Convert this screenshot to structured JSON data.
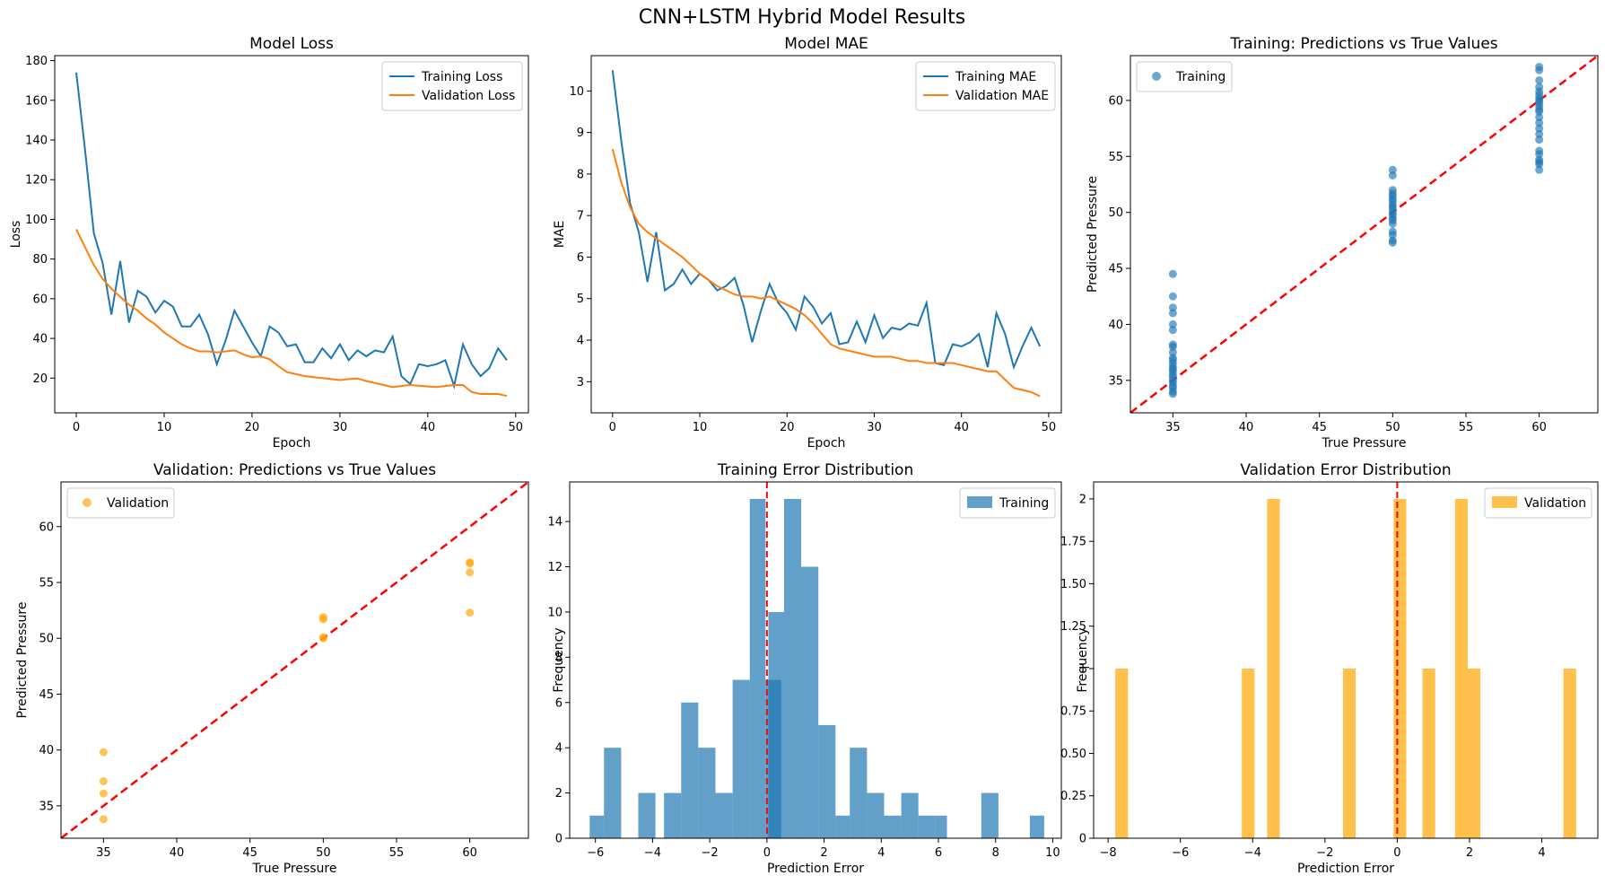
{
  "figure": {
    "title": "CNN+LSTM Hybrid Model Results"
  },
  "colors": {
    "blue": "#1f77b4",
    "orange": "#ff7f0e",
    "valOrange": "#ffa500",
    "histBlue": "#1f77b4",
    "ref": "#ff0000"
  },
  "chart_data": [
    {
      "type": "line",
      "title": "Model Loss",
      "xlabel": "Epoch",
      "ylabel": "Loss",
      "xlim": [
        -2.45,
        51.45
      ],
      "ylim": [
        2.5,
        182.5
      ],
      "xticks": [
        0,
        10,
        20,
        30,
        40,
        50
      ],
      "yticks": [
        20,
        40,
        60,
        80,
        100,
        120,
        140,
        160,
        180
      ],
      "legend": "top-right",
      "x": [
        0,
        1,
        2,
        3,
        4,
        5,
        6,
        7,
        8,
        9,
        10,
        11,
        12,
        13,
        14,
        15,
        16,
        17,
        18,
        19,
        20,
        21,
        22,
        23,
        24,
        25,
        26,
        27,
        28,
        29,
        30,
        31,
        32,
        33,
        34,
        35,
        36,
        37,
        38,
        39,
        40,
        41,
        42,
        43,
        44,
        45,
        46,
        47,
        48,
        49
      ],
      "series": [
        {
          "name": "Training Loss",
          "color": "#1f77b4",
          "values": [
            174,
            135,
            93,
            78,
            52,
            79,
            48,
            64,
            61,
            53,
            59,
            56,
            46,
            46,
            52,
            42,
            27,
            39,
            54,
            46,
            38,
            31,
            46,
            43,
            36,
            37,
            28,
            28,
            35,
            30,
            37,
            29,
            34,
            31,
            34,
            33,
            41,
            21,
            17,
            27,
            26,
            27,
            29,
            16,
            37,
            27,
            21,
            25,
            35,
            29
          ]
        },
        {
          "name": "Validation Loss",
          "color": "#ff7f0e",
          "values": [
            95,
            86,
            77,
            70,
            65,
            61,
            57,
            54,
            50,
            47,
            43,
            40,
            37,
            35,
            33.5,
            33.5,
            33,
            33.5,
            34,
            32,
            30.5,
            31,
            29.5,
            26,
            23,
            22,
            21,
            20.5,
            20,
            19.5,
            19,
            19.5,
            19.8,
            18.5,
            17.5,
            16.5,
            15.5,
            16,
            16.5,
            16.2,
            15.8,
            15.5,
            16,
            16.5,
            16.5,
            13,
            12,
            12,
            12,
            11
          ]
        }
      ]
    },
    {
      "type": "line",
      "title": "Model MAE",
      "xlabel": "Epoch",
      "ylabel": "MAE",
      "xlim": [
        -2.45,
        51.45
      ],
      "ylim": [
        2.25,
        10.85
      ],
      "xticks": [
        0,
        10,
        20,
        30,
        40,
        50
      ],
      "yticks": [
        3,
        4,
        5,
        6,
        7,
        8,
        9,
        10
      ],
      "legend": "top-right",
      "x": [
        0,
        1,
        2,
        3,
        4,
        5,
        6,
        7,
        8,
        9,
        10,
        11,
        12,
        13,
        14,
        15,
        16,
        17,
        18,
        19,
        20,
        21,
        22,
        23,
        24,
        25,
        26,
        27,
        28,
        29,
        30,
        31,
        32,
        33,
        34,
        35,
        36,
        37,
        38,
        39,
        40,
        41,
        42,
        43,
        44,
        45,
        46,
        47,
        48,
        49
      ],
      "series": [
        {
          "name": "Training MAE",
          "color": "#1f77b4",
          "values": [
            10.5,
            8.8,
            7.3,
            6.6,
            5.4,
            6.6,
            5.2,
            5.35,
            5.7,
            5.35,
            5.6,
            5.45,
            5.2,
            5.3,
            5.5,
            4.85,
            3.95,
            4.7,
            5.35,
            4.9,
            4.65,
            4.25,
            5.05,
            4.8,
            4.4,
            4.65,
            3.9,
            3.95,
            4.45,
            3.95,
            4.6,
            4.05,
            4.3,
            4.25,
            4.4,
            4.35,
            4.9,
            3.45,
            3.4,
            3.9,
            3.85,
            3.95,
            4.15,
            3.35,
            4.65,
            4.15,
            3.35,
            3.85,
            4.3,
            3.85
          ]
        },
        {
          "name": "Validation MAE",
          "color": "#ff7f0e",
          "values": [
            8.6,
            7.8,
            7.2,
            6.8,
            6.6,
            6.45,
            6.3,
            6.15,
            6.0,
            5.8,
            5.6,
            5.45,
            5.3,
            5.2,
            5.1,
            5.05,
            5.05,
            5.0,
            5.05,
            4.95,
            4.85,
            4.75,
            4.6,
            4.4,
            4.15,
            3.9,
            3.8,
            3.75,
            3.7,
            3.65,
            3.6,
            3.6,
            3.6,
            3.55,
            3.5,
            3.5,
            3.45,
            3.45,
            3.45,
            3.45,
            3.4,
            3.35,
            3.3,
            3.25,
            3.25,
            3.05,
            2.85,
            2.8,
            2.75,
            2.65
          ]
        }
      ]
    },
    {
      "type": "scatter",
      "title": "Training: Predictions vs True Values",
      "xlabel": "True Pressure",
      "ylabel": "Predicted Pressure",
      "xlim": [
        32.1,
        64.0
      ],
      "ylim": [
        32.1,
        64.0
      ],
      "xticks": [
        35,
        40,
        45,
        50,
        55,
        60
      ],
      "yticks": [
        35,
        40,
        45,
        50,
        55,
        60
      ],
      "legend": "top-left",
      "reference_line": "y = x",
      "series": [
        {
          "name": "Training",
          "color": "#1f77b4",
          "x_value": 35,
          "values": [
            44.5,
            42.5,
            41.5,
            41.0,
            40.0,
            39.5,
            38.2,
            38.0,
            37.5,
            37.0,
            36.8,
            36.5,
            36.2,
            36.0,
            35.8,
            35.5,
            35.3,
            35.0,
            34.8,
            34.5,
            34.3,
            34.0,
            33.8
          ]
        },
        {
          "name": "Training",
          "color": "#1f77b4",
          "x_value": 50,
          "values": [
            53.8,
            53.3,
            52.0,
            51.7,
            51.5,
            51.2,
            51.0,
            50.7,
            50.5,
            50.3,
            50.0,
            49.8,
            49.5,
            49.3,
            49.0,
            48.3,
            48.0,
            47.5,
            47.3
          ]
        },
        {
          "name": "Training",
          "color": "#1f77b4",
          "x_value": 60,
          "values": [
            63.0,
            62.7,
            61.8,
            61.2,
            60.8,
            60.5,
            60.2,
            60.0,
            59.8,
            59.5,
            59.2,
            59.0,
            58.5,
            58.0,
            57.5,
            57.0,
            56.5,
            55.5,
            55.2,
            54.7,
            54.5,
            54.3,
            53.8
          ]
        }
      ]
    },
    {
      "type": "scatter",
      "title": "Validation: Predictions vs True Values",
      "xlabel": "True Pressure",
      "ylabel": "Predicted Pressure",
      "xlim": [
        32.1,
        64.0
      ],
      "ylim": [
        32.1,
        64.0
      ],
      "xticks": [
        35,
        40,
        45,
        50,
        55,
        60
      ],
      "yticks": [
        35,
        40,
        45,
        50,
        55,
        60
      ],
      "legend": "top-left",
      "reference_line": "y = x",
      "series": [
        {
          "name": "Validation",
          "color": "#ffa500",
          "x_value": 35,
          "values": [
            39.8,
            37.2,
            36.1,
            33.8
          ]
        },
        {
          "name": "Validation",
          "color": "#ffa500",
          "x_value": 50,
          "values": [
            51.9,
            51.7,
            50.1,
            50.0
          ]
        },
        {
          "name": "Validation",
          "color": "#ffa500",
          "x_value": 60,
          "values": [
            56.8,
            56.7,
            55.9,
            52.3
          ]
        }
      ]
    },
    {
      "type": "bar",
      "title": "Training Error Distribution",
      "xlabel": "Prediction Error",
      "ylabel": "Frequency",
      "xlim": [
        -6.9,
        10.3
      ],
      "ylim": [
        0,
        15.75
      ],
      "xticks": [
        -6,
        -4,
        -2,
        0,
        2,
        4,
        6,
        8,
        10
      ],
      "yticks": [
        0,
        2,
        4,
        6,
        8,
        10,
        12,
        14
      ],
      "legend": "top-right",
      "vline": 0,
      "series": [
        {
          "name": "Training",
          "color": "#1f77b4",
          "bins": [
            [
              -6.2,
              -5.7,
              1
            ],
            [
              -5.7,
              -5.1,
              4
            ],
            [
              -4.5,
              -3.9,
              2
            ],
            [
              -3.6,
              -3.0,
              2
            ],
            [
              -3.0,
              -2.4,
              6
            ],
            [
              -2.4,
              -1.8,
              4
            ],
            [
              -1.8,
              -1.2,
              2
            ],
            [
              -1.2,
              -0.6,
              7
            ],
            [
              -0.6,
              -0.05,
              15
            ],
            [
              -0.05,
              0.5,
              7
            ],
            [
              0.05,
              0.6,
              10
            ],
            [
              0.6,
              1.2,
              15
            ],
            [
              1.2,
              1.8,
              12
            ],
            [
              1.8,
              2.4,
              5
            ],
            [
              2.4,
              2.9,
              1
            ],
            [
              2.9,
              3.5,
              4
            ],
            [
              3.5,
              4.1,
              2
            ],
            [
              4.1,
              4.7,
              1
            ],
            [
              4.7,
              5.3,
              2
            ],
            [
              5.3,
              5.9,
              1
            ],
            [
              5.9,
              6.3,
              1
            ],
            [
              7.5,
              8.1,
              2
            ],
            [
              9.2,
              9.7,
              1
            ]
          ]
        }
      ]
    },
    {
      "type": "bar",
      "title": "Validation Error Distribution",
      "xlabel": "Prediction Error",
      "ylabel": "Frequency",
      "xlim": [
        -8.4,
        5.55
      ],
      "ylim": [
        0,
        2.1
      ],
      "xticks": [
        -8,
        -6,
        -4,
        -2,
        0,
        2,
        4
      ],
      "yticks": [
        0.0,
        0.25,
        0.5,
        0.75,
        1.0,
        1.25,
        1.5,
        1.75,
        2.0
      ],
      "legend": "top-right",
      "vline": 0,
      "series": [
        {
          "name": "Validation",
          "color": "#ffa500",
          "bins": [
            [
              -7.8,
              -7.45,
              1
            ],
            [
              -4.3,
              -3.95,
              1
            ],
            [
              -3.6,
              -3.25,
              2
            ],
            [
              -1.5,
              -1.15,
              1
            ],
            [
              -0.1,
              0.25,
              2
            ],
            [
              0.7,
              1.05,
              1
            ],
            [
              1.6,
              1.95,
              2
            ],
            [
              1.95,
              2.3,
              1
            ],
            [
              4.6,
              4.95,
              1
            ]
          ]
        }
      ]
    }
  ]
}
